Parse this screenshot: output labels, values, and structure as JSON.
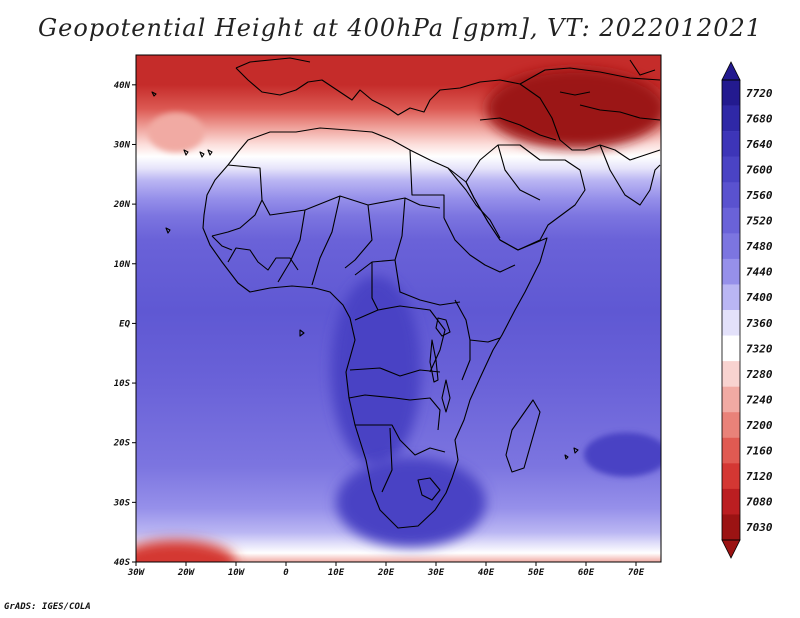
{
  "title": "Geopotential Height at 400hPa [gpm], VT: 2022012021",
  "credit": "GrADS: IGES/COLA",
  "lat_labels": [
    "40N",
    "30N",
    "20N",
    "10N",
    "EQ",
    "10S",
    "20S",
    "30S",
    "40S"
  ],
  "lon_labels": [
    "30W",
    "20W",
    "10W",
    "0",
    "10E",
    "20E",
    "30E",
    "40E",
    "50E",
    "60E",
    "70E"
  ],
  "colorbar": {
    "levels": [
      "7720",
      "7680",
      "7640",
      "7600",
      "7560",
      "7520",
      "7480",
      "7440",
      "7400",
      "7360",
      "7320",
      "7280",
      "7240",
      "7200",
      "7160",
      "7120",
      "7080",
      "7030"
    ],
    "colors": [
      "#231a8f",
      "#2f28a6",
      "#3d35b8",
      "#4a43c4",
      "#5a52cf",
      "#6a62d8",
      "#7c75e0",
      "#9690ea",
      "#bab6f3",
      "#e3e1fa",
      "#ffffff",
      "#f8d3d0",
      "#f1aaa3",
      "#e98279",
      "#e05a52",
      "#d43733",
      "#bb1e21",
      "#9b1313"
    ]
  },
  "bands": [
    {
      "lat": 40,
      "color": "#c52c2a"
    },
    {
      "lat": 36,
      "color": "#dc5953"
    },
    {
      "lat": 33,
      "color": "#ee9d96"
    },
    {
      "lat": 30,
      "color": "#fcdedb"
    },
    {
      "lat": 28,
      "color": "#ffffff"
    },
    {
      "lat": 26,
      "color": "#e6e4fa"
    },
    {
      "lat": 24,
      "color": "#bab6f3"
    },
    {
      "lat": 21,
      "color": "#9690ea"
    },
    {
      "lat": 18,
      "color": "#7c75e0"
    },
    {
      "lat": 14,
      "color": "#6a62d8"
    },
    {
      "lat": 2,
      "color": "#5f58d3"
    },
    {
      "lat": -10,
      "color": "#6a62d8"
    },
    {
      "lat": -24,
      "color": "#7c75e0"
    },
    {
      "lat": -31,
      "color": "#9690ea"
    },
    {
      "lat": -35,
      "color": "#bab6f3"
    },
    {
      "lat": -37,
      "color": "#e3e1fa"
    },
    {
      "lat": -38.5,
      "color": "#ffffff"
    },
    {
      "lat": -40,
      "color": "#f1aaa3"
    }
  ],
  "features": {
    "high_central_africa": {
      "lat": -8,
      "lon": 18,
      "color": "#4a43c4"
    },
    "high_south_africa": {
      "lat": -30,
      "lon": 25,
      "color": "#4a43c4"
    },
    "high_indian_ocean": {
      "lat": -22,
      "lon": 68,
      "color": "#4a43c4"
    },
    "low_atlantic": {
      "lat": 32,
      "lon": -22,
      "color": "#f1aaa3"
    },
    "low_arabia_persia": {
      "lat": 36,
      "lon": 58,
      "color": "#9b1313"
    },
    "low_south_atlantic": {
      "lat": -40,
      "lon": -22,
      "color": "#d43733"
    }
  }
}
